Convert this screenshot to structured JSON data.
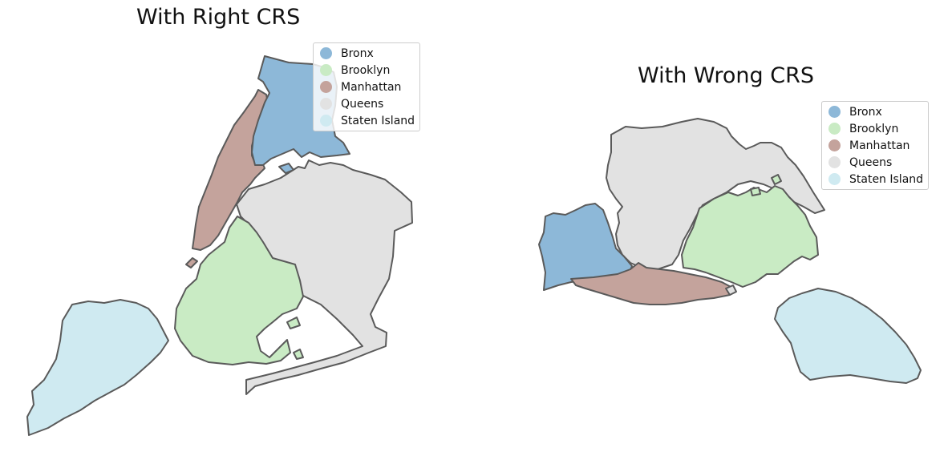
{
  "figure": {
    "left_map": {
      "title": "With Right CRS",
      "legend": [
        {
          "label": "Bronx",
          "color": "#8db8d8"
        },
        {
          "label": "Brooklyn",
          "color": "#c9ebc4"
        },
        {
          "label": "Manhattan",
          "color": "#c4a39c"
        },
        {
          "label": "Queens",
          "color": "#e2e2e2"
        },
        {
          "label": "Staten Island",
          "color": "#cfeaf1"
        }
      ]
    },
    "right_map": {
      "title": "With Wrong CRS",
      "legend": [
        {
          "label": "Bronx",
          "color": "#8db8d8"
        },
        {
          "label": "Brooklyn",
          "color": "#c9ebc4"
        },
        {
          "label": "Manhattan",
          "color": "#c4a39c"
        },
        {
          "label": "Queens",
          "color": "#e2e2e2"
        },
        {
          "label": "Staten Island",
          "color": "#cfeaf1"
        }
      ]
    },
    "stroke_color": "#5a5a5a"
  }
}
